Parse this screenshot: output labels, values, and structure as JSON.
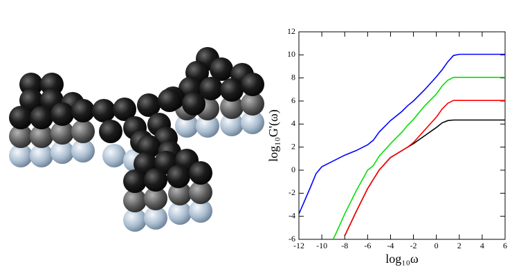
{
  "chart_data": {
    "type": "line",
    "x_label": "log₁₀ω",
    "y_label": "log₁₀G'(ω)",
    "x": [
      -12,
      -11,
      -10.5,
      -10,
      -9,
      -8,
      -7,
      -6,
      -5.5,
      -5,
      -4,
      -3,
      -2.5,
      -2,
      -1,
      0,
      0.5,
      1,
      1.5,
      2,
      3,
      4,
      5,
      6
    ],
    "series": [
      {
        "color": "#000000",
        "values": [
          null,
          null,
          null,
          null,
          null,
          -5.7,
          -3.6,
          -1.6,
          -0.8,
          0,
          1.1,
          1.7,
          2.0,
          2.3,
          3.0,
          3.7,
          4.1,
          4.3,
          4.35,
          4.35,
          4.35,
          4.35,
          4.35,
          4.35
        ]
      },
      {
        "color": "#ff0000",
        "values": [
          null,
          null,
          null,
          null,
          null,
          -5.7,
          -3.6,
          -1.6,
          -0.8,
          0,
          1.1,
          1.7,
          2.0,
          2.4,
          3.5,
          4.6,
          5.3,
          5.8,
          6.05,
          6.05,
          6.05,
          6.05,
          6.05,
          6.05
        ]
      },
      {
        "color": "#00e000",
        "values": [
          null,
          null,
          null,
          null,
          -6,
          -3.8,
          -1.8,
          0,
          0.4,
          1.2,
          2.3,
          3.3,
          3.9,
          4.4,
          5.6,
          6.6,
          7.3,
          7.8,
          8.05,
          8.05,
          8.05,
          8.05,
          8.05,
          8.05
        ]
      },
      {
        "color": "#0000ff",
        "values": [
          -3.8,
          -1.5,
          -0.3,
          0.3,
          0.8,
          1.3,
          1.7,
          2.2,
          2.6,
          3.3,
          4.3,
          5.1,
          5.6,
          6.0,
          7.0,
          8.1,
          8.7,
          9.4,
          9.95,
          10.05,
          10.05,
          10.05,
          10.05,
          10.05
        ]
      }
    ],
    "xlim": [
      -12,
      6
    ],
    "xticks": [
      -12,
      -10,
      -8,
      -6,
      -4,
      -2,
      0,
      2,
      4,
      6
    ],
    "ylim": [
      -6,
      12
    ],
    "yticks": [
      -6,
      -4,
      -2,
      0,
      2,
      4,
      6,
      8,
      10,
      12
    ]
  }
}
